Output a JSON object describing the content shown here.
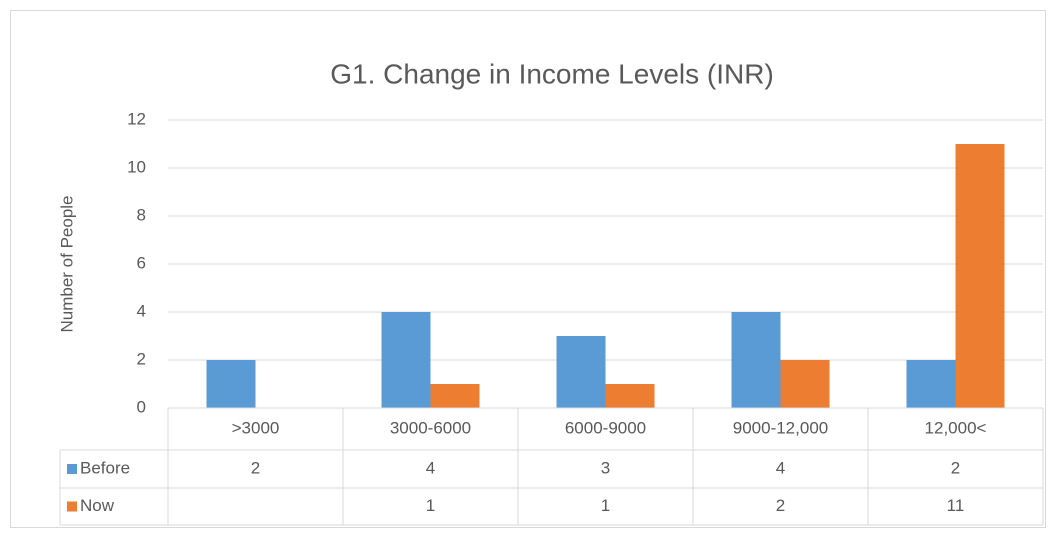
{
  "chart_data": {
    "type": "bar",
    "title": "G1. Change in Income Levels (INR)",
    "y_label": "Number of People",
    "categories": [
      ">3000",
      "3000-6000",
      "6000-9000",
      "9000-12,000",
      "12,000<"
    ],
    "series": [
      {
        "name": "Before",
        "color": "#5b9bd5",
        "values": [
          2,
          4,
          3,
          4,
          2
        ]
      },
      {
        "name": "Now",
        "color": "#ed7d31",
        "values": [
          null,
          1,
          1,
          2,
          11
        ]
      }
    ],
    "ylim": [
      0,
      12
    ],
    "yticks": [
      0,
      2,
      4,
      6,
      8,
      10,
      12
    ],
    "grid": true,
    "data_table": true
  }
}
